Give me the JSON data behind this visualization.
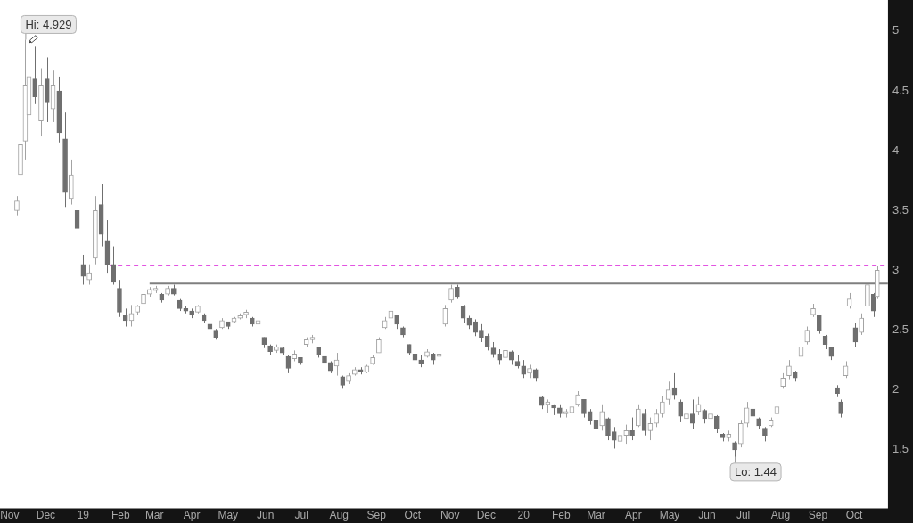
{
  "chart_data": {
    "type": "candlestick",
    "x": [
      "2018-11-07",
      "2018-11-10",
      "2018-11-14",
      "2018-11-17",
      "2018-11-22",
      "2018-11-27",
      "2018-12-02",
      "2018-12-07",
      "2018-12-12",
      "2018-12-17",
      "2018-12-22",
      "2018-12-27",
      "2019-01-01",
      "2019-01-06",
      "2019-01-11",
      "2019-01-16",
      "2019-01-21",
      "2019-01-26",
      "2019-01-31",
      "2019-02-05",
      "2019-02-10",
      "2019-02-15",
      "2019-02-20",
      "2019-02-25",
      "2019-03-02",
      "2019-03-07",
      "2019-03-12",
      "2019-03-17",
      "2019-03-22",
      "2019-03-27",
      "2019-04-01",
      "2019-04-06",
      "2019-04-11",
      "2019-04-16",
      "2019-04-21",
      "2019-04-26",
      "2019-05-01",
      "2019-05-06",
      "2019-05-11",
      "2019-05-16",
      "2019-05-21",
      "2019-05-26",
      "2019-05-31",
      "2019-06-05",
      "2019-06-10",
      "2019-06-15",
      "2019-06-20",
      "2019-06-25",
      "2019-06-30",
      "2019-07-05",
      "2019-07-10",
      "2019-07-15",
      "2019-07-20",
      "2019-07-25",
      "2019-07-30",
      "2019-08-04",
      "2019-08-09",
      "2019-08-14",
      "2019-08-19",
      "2019-08-24",
      "2019-08-29",
      "2019-09-03",
      "2019-09-08",
      "2019-09-13",
      "2019-09-18",
      "2019-09-23",
      "2019-09-28",
      "2019-10-03",
      "2019-10-08",
      "2019-10-13",
      "2019-10-18",
      "2019-10-23",
      "2019-10-28",
      "2019-11-02",
      "2019-11-07",
      "2019-11-12",
      "2019-11-17",
      "2019-11-22",
      "2019-11-27",
      "2019-12-02",
      "2019-12-07",
      "2019-12-12",
      "2019-12-17",
      "2019-12-22",
      "2019-12-27",
      "2020-01-01",
      "2020-01-06",
      "2020-01-11",
      "2020-01-16",
      "2020-01-21",
      "2020-01-26",
      "2020-01-31",
      "2020-02-05",
      "2020-02-10",
      "2020-02-15",
      "2020-02-20",
      "2020-02-25",
      "2020-03-01",
      "2020-03-06",
      "2020-03-11",
      "2020-03-16",
      "2020-03-21",
      "2020-03-26",
      "2020-03-31",
      "2020-04-05",
      "2020-04-10",
      "2020-04-15",
      "2020-04-20",
      "2020-04-25",
      "2020-04-30",
      "2020-05-05",
      "2020-05-10",
      "2020-05-15",
      "2020-05-20",
      "2020-05-25",
      "2020-05-30",
      "2020-06-04",
      "2020-06-09",
      "2020-06-14",
      "2020-06-19",
      "2020-06-24",
      "2020-06-29",
      "2020-07-04",
      "2020-07-09",
      "2020-07-14",
      "2020-07-19",
      "2020-07-24",
      "2020-07-29",
      "2020-08-03",
      "2020-08-08",
      "2020-08-13",
      "2020-08-18",
      "2020-08-23",
      "2020-08-28",
      "2020-09-02",
      "2020-09-07",
      "2020-09-12",
      "2020-09-17",
      "2020-09-20",
      "2020-09-24",
      "2020-09-27",
      "2020-10-02",
      "2020-10-07",
      "2020-10-12",
      "2020-10-17",
      "2020-10-20"
    ],
    "ohlc": [
      [
        3.5,
        3.62,
        3.46,
        3.58
      ],
      [
        3.8,
        4.1,
        3.78,
        4.05
      ],
      [
        4.08,
        4.929,
        3.92,
        4.55
      ],
      [
        4.3,
        4.8,
        3.9,
        4.62
      ],
      [
        4.6,
        4.87,
        4.39,
        4.45
      ],
      [
        4.25,
        4.69,
        4.12,
        4.55
      ],
      [
        4.6,
        4.78,
        4.24,
        4.4
      ],
      [
        4.35,
        4.67,
        4.24,
        4.55
      ],
      [
        4.5,
        4.62,
        4.07,
        4.15
      ],
      [
        4.1,
        4.32,
        3.53,
        3.65
      ],
      [
        3.6,
        3.92,
        3.55,
        3.8
      ],
      [
        3.5,
        3.57,
        3.28,
        3.35
      ],
      [
        3.05,
        3.13,
        2.88,
        2.95
      ],
      [
        2.92,
        3.05,
        2.88,
        2.98
      ],
      [
        3.1,
        3.62,
        3.05,
        3.5
      ],
      [
        3.55,
        3.72,
        3.2,
        3.3
      ],
      [
        3.25,
        3.42,
        2.98,
        3.05
      ],
      [
        3.05,
        3.2,
        2.88,
        2.9
      ],
      [
        2.85,
        2.92,
        2.61,
        2.65
      ],
      [
        2.62,
        2.68,
        2.53,
        2.58
      ],
      [
        2.58,
        2.71,
        2.53,
        2.64
      ],
      [
        2.65,
        2.71,
        2.63,
        2.7
      ],
      [
        2.72,
        2.82,
        2.71,
        2.8
      ],
      [
        2.8,
        2.86,
        2.78,
        2.84
      ],
      [
        2.83,
        2.87,
        2.81,
        2.85
      ],
      [
        2.8,
        2.81,
        2.73,
        2.75
      ],
      [
        2.8,
        2.87,
        2.79,
        2.85
      ],
      [
        2.85,
        2.88,
        2.79,
        2.8
      ],
      [
        2.75,
        2.76,
        2.66,
        2.68
      ],
      [
        2.68,
        2.7,
        2.64,
        2.66
      ],
      [
        2.66,
        2.68,
        2.6,
        2.63
      ],
      [
        2.65,
        2.71,
        2.64,
        2.7
      ],
      [
        2.63,
        2.64,
        2.56,
        2.58
      ],
      [
        2.55,
        2.56,
        2.49,
        2.51
      ],
      [
        2.5,
        2.51,
        2.42,
        2.44
      ],
      [
        2.52,
        2.6,
        2.51,
        2.58
      ],
      [
        2.57,
        2.57,
        2.51,
        2.53
      ],
      [
        2.57,
        2.61,
        2.56,
        2.6
      ],
      [
        2.6,
        2.64,
        2.59,
        2.62
      ],
      [
        2.63,
        2.67,
        2.6,
        2.65
      ],
      [
        2.6,
        2.61,
        2.53,
        2.55
      ],
      [
        2.55,
        2.61,
        2.53,
        2.58
      ],
      [
        2.44,
        2.44,
        2.35,
        2.38
      ],
      [
        2.37,
        2.38,
        2.29,
        2.32
      ],
      [
        2.33,
        2.38,
        2.31,
        2.36
      ],
      [
        2.35,
        2.36,
        2.29,
        2.31
      ],
      [
        2.28,
        2.29,
        2.14,
        2.18
      ],
      [
        2.26,
        2.33,
        2.24,
        2.3
      ],
      [
        2.27,
        2.27,
        2.21,
        2.23
      ],
      [
        2.38,
        2.44,
        2.36,
        2.42
      ],
      [
        2.42,
        2.46,
        2.39,
        2.44
      ],
      [
        2.36,
        2.36,
        2.27,
        2.29
      ],
      [
        2.28,
        2.29,
        2.21,
        2.23
      ],
      [
        2.23,
        2.24,
        2.14,
        2.16
      ],
      [
        2.2,
        2.31,
        2.12,
        2.25
      ],
      [
        2.11,
        2.12,
        2.01,
        2.04
      ],
      [
        2.07,
        2.14,
        2.05,
        2.12
      ],
      [
        2.13,
        2.19,
        2.12,
        2.17
      ],
      [
        2.17,
        2.19,
        2.13,
        2.15
      ],
      [
        2.15,
        2.21,
        2.14,
        2.2
      ],
      [
        2.22,
        2.29,
        2.21,
        2.27
      ],
      [
        2.31,
        2.44,
        2.31,
        2.42
      ],
      [
        2.52,
        2.61,
        2.51,
        2.58
      ],
      [
        2.6,
        2.68,
        2.59,
        2.66
      ],
      [
        2.62,
        2.62,
        2.51,
        2.55
      ],
      [
        2.52,
        2.53,
        2.44,
        2.46
      ],
      [
        2.38,
        2.38,
        2.29,
        2.31
      ],
      [
        2.3,
        2.34,
        2.21,
        2.25
      ],
      [
        2.25,
        2.29,
        2.19,
        2.22
      ],
      [
        2.28,
        2.34,
        2.27,
        2.32
      ],
      [
        2.3,
        2.31,
        2.21,
        2.25
      ],
      [
        2.28,
        2.31,
        2.27,
        2.3
      ],
      [
        2.55,
        2.71,
        2.53,
        2.68
      ],
      [
        2.75,
        2.88,
        2.73,
        2.85
      ],
      [
        2.86,
        2.88,
        2.76,
        2.78
      ],
      [
        2.7,
        2.71,
        2.56,
        2.6
      ],
      [
        2.6,
        2.62,
        2.51,
        2.54
      ],
      [
        2.57,
        2.59,
        2.45,
        2.48
      ],
      [
        2.5,
        2.55,
        2.4,
        2.44
      ],
      [
        2.45,
        2.47,
        2.33,
        2.36
      ],
      [
        2.35,
        2.4,
        2.27,
        2.3
      ],
      [
        2.3,
        2.34,
        2.21,
        2.25
      ],
      [
        2.27,
        2.36,
        2.25,
        2.33
      ],
      [
        2.32,
        2.33,
        2.21,
        2.25
      ],
      [
        2.24,
        2.29,
        2.18,
        2.2
      ],
      [
        2.2,
        2.25,
        2.1,
        2.13
      ],
      [
        2.14,
        2.21,
        2.1,
        2.18
      ],
      [
        2.17,
        2.18,
        2.07,
        2.1
      ],
      [
        1.94,
        1.95,
        1.84,
        1.87
      ],
      [
        1.88,
        1.92,
        1.81,
        1.9
      ],
      [
        1.87,
        1.88,
        1.79,
        1.85
      ],
      [
        1.85,
        1.88,
        1.77,
        1.8
      ],
      [
        1.8,
        1.84,
        1.77,
        1.82
      ],
      [
        1.81,
        1.88,
        1.79,
        1.86
      ],
      [
        1.88,
        1.99,
        1.86,
        1.96
      ],
      [
        1.92,
        1.92,
        1.77,
        1.8
      ],
      [
        1.82,
        1.84,
        1.71,
        1.74
      ],
      [
        1.75,
        1.81,
        1.62,
        1.68
      ],
      [
        1.7,
        1.88,
        1.66,
        1.82
      ],
      [
        1.76,
        1.77,
        1.58,
        1.62
      ],
      [
        1.65,
        1.69,
        1.51,
        1.58
      ],
      [
        1.57,
        1.66,
        1.51,
        1.62
      ],
      [
        1.62,
        1.71,
        1.55,
        1.66
      ],
      [
        1.66,
        1.77,
        1.58,
        1.62
      ],
      [
        1.7,
        1.88,
        1.69,
        1.84
      ],
      [
        1.8,
        1.84,
        1.62,
        1.66
      ],
      [
        1.66,
        1.77,
        1.58,
        1.72
      ],
      [
        1.72,
        1.84,
        1.69,
        1.8
      ],
      [
        1.8,
        1.95,
        1.77,
        1.9
      ],
      [
        1.92,
        2.07,
        1.88,
        2.0
      ],
      [
        2.02,
        2.14,
        1.92,
        1.96
      ],
      [
        1.9,
        1.92,
        1.73,
        1.78
      ],
      [
        1.76,
        1.88,
        1.69,
        1.8
      ],
      [
        1.8,
        1.92,
        1.67,
        1.72
      ],
      [
        1.82,
        1.94,
        1.79,
        1.88
      ],
      [
        1.83,
        1.84,
        1.72,
        1.76
      ],
      [
        1.76,
        1.84,
        1.69,
        1.8
      ],
      [
        1.78,
        1.79,
        1.64,
        1.68
      ],
      [
        1.63,
        1.64,
        1.57,
        1.6
      ],
      [
        1.6,
        1.66,
        1.57,
        1.63
      ],
      [
        1.56,
        1.57,
        1.44,
        1.5
      ],
      [
        1.55,
        1.75,
        1.52,
        1.72
      ],
      [
        1.72,
        1.9,
        1.69,
        1.85
      ],
      [
        1.84,
        1.88,
        1.73,
        1.78
      ],
      [
        1.76,
        1.77,
        1.67,
        1.7
      ],
      [
        1.68,
        1.69,
        1.57,
        1.62
      ],
      [
        1.7,
        1.77,
        1.69,
        1.75
      ],
      [
        1.8,
        1.9,
        1.79,
        1.86
      ],
      [
        2.03,
        2.14,
        2.01,
        2.1
      ],
      [
        2.12,
        2.25,
        2.09,
        2.2
      ],
      [
        2.15,
        2.16,
        2.07,
        2.1
      ],
      [
        2.28,
        2.4,
        2.27,
        2.36
      ],
      [
        2.4,
        2.53,
        2.38,
        2.5
      ],
      [
        2.63,
        2.72,
        2.61,
        2.68
      ],
      [
        2.62,
        2.62,
        2.47,
        2.5
      ],
      [
        2.45,
        2.46,
        2.34,
        2.38
      ],
      [
        2.36,
        2.36,
        2.25,
        2.28
      ],
      [
        2.02,
        2.04,
        1.94,
        1.97
      ],
      [
        1.9,
        1.92,
        1.77,
        1.8
      ],
      [
        2.12,
        2.24,
        2.1,
        2.2
      ],
      [
        2.7,
        2.81,
        2.68,
        2.76
      ],
      [
        2.52,
        2.56,
        2.36,
        2.4
      ],
      [
        2.48,
        2.64,
        2.46,
        2.6
      ],
      [
        2.7,
        2.93,
        2.66,
        2.88
      ],
      [
        2.8,
        2.81,
        2.61,
        2.66
      ],
      [
        2.78,
        3.04,
        2.76,
        3.0
      ]
    ],
    "colors": [
      "#a3a3a3",
      "#a3a3a3",
      "#a3a3a3",
      "#a3a3a3",
      "#6f6f6f",
      "#a3a3a3",
      "#6f6f6f",
      "#a3a3a3",
      "#6f6f6f",
      "#6f6f6f",
      "#a3a3a3",
      "#6f6f6f",
      "#6f6f6f",
      "#a3a3a3",
      "#a3a3a3",
      "#6f6f6f",
      "#6f6f6f",
      "#6f6f6f",
      "#6f6f6f",
      "#6f6f6f",
      "#a3a3a3",
      "#a3a3a3",
      "#a3a3a3",
      "#a3a3a3",
      "#a3a3a3",
      "#6f6f6f",
      "#a3a3a3",
      "#6f6f6f",
      "#6f6f6f",
      "#6f6f6f",
      "#6f6f6f",
      "#a3a3a3",
      "#6f6f6f",
      "#6f6f6f",
      "#6f6f6f",
      "#a3a3a3",
      "#6f6f6f",
      "#a3a3a3",
      "#a3a3a3",
      "#a3a3a3",
      "#6f6f6f",
      "#a3a3a3",
      "#6f6f6f",
      "#6f6f6f",
      "#a3a3a3",
      "#6f6f6f",
      "#6f6f6f",
      "#a3a3a3",
      "#6f6f6f",
      "#a3a3a3",
      "#a3a3a3",
      "#6f6f6f",
      "#6f6f6f",
      "#6f6f6f",
      "#a3a3a3",
      "#6f6f6f",
      "#a3a3a3",
      "#a3a3a3",
      "#6f6f6f",
      "#a3a3a3",
      "#a3a3a3",
      "#a3a3a3",
      "#a3a3a3",
      "#a3a3a3",
      "#6f6f6f",
      "#6f6f6f",
      "#6f6f6f",
      "#6f6f6f",
      "#6f6f6f",
      "#a3a3a3",
      "#6f6f6f",
      "#a3a3a3",
      "#a3a3a3",
      "#a3a3a3",
      "#6f6f6f",
      "#6f6f6f",
      "#6f6f6f",
      "#6f6f6f",
      "#6f6f6f",
      "#6f6f6f",
      "#6f6f6f",
      "#6f6f6f",
      "#a3a3a3",
      "#6f6f6f",
      "#6f6f6f",
      "#6f6f6f",
      "#a3a3a3",
      "#6f6f6f",
      "#6f6f6f",
      "#a3a3a3",
      "#6f6f6f",
      "#6f6f6f",
      "#a3a3a3",
      "#a3a3a3",
      "#a3a3a3",
      "#6f6f6f",
      "#6f6f6f",
      "#6f6f6f",
      "#a3a3a3",
      "#6f6f6f",
      "#6f6f6f",
      "#a3a3a3",
      "#a3a3a3",
      "#6f6f6f",
      "#a3a3a3",
      "#6f6f6f",
      "#a3a3a3",
      "#a3a3a3",
      "#a3a3a3",
      "#a3a3a3",
      "#6f6f6f",
      "#6f6f6f",
      "#a3a3a3",
      "#6f6f6f",
      "#a3a3a3",
      "#6f6f6f",
      "#a3a3a3",
      "#6f6f6f",
      "#6f6f6f",
      "#a3a3a3",
      "#6f6f6f",
      "#a3a3a3",
      "#a3a3a3",
      "#6f6f6f",
      "#6f6f6f",
      "#6f6f6f",
      "#a3a3a3",
      "#a3a3a3",
      "#a3a3a3",
      "#a3a3a3",
      "#6f6f6f",
      "#a3a3a3",
      "#a3a3a3",
      "#a3a3a3",
      "#6f6f6f",
      "#6f6f6f",
      "#6f6f6f",
      "#6f6f6f",
      "#6f6f6f",
      "#a3a3a3",
      "#a3a3a3",
      "#6f6f6f",
      "#a3a3a3",
      "#a3a3a3",
      "#6f6f6f",
      "#a3a3a3"
    ],
    "series": [
      {
        "type": "line",
        "x": [
          "2019-02-25",
          "2020-10-29"
        ],
        "values": [
          2.89,
          2.89
        ],
        "color": "#7f7f7f"
      },
      {
        "type": "line",
        "x": [
          "2019-01-23",
          "2020-10-29"
        ],
        "values": [
          3.04,
          3.04
        ],
        "color": "#e254e2",
        "line_style": "dashed"
      }
    ],
    "xlim": [
      "2018-10-24",
      "2020-10-29"
    ],
    "xticks": [
      {
        "value": "2018-11-01",
        "label": "Nov"
      },
      {
        "value": "2018-12-01",
        "label": "Dec"
      },
      {
        "value": "2019-01-01",
        "label": "19"
      },
      {
        "value": "2019-02-01",
        "label": "Feb"
      },
      {
        "value": "2019-03-01",
        "label": "Mar"
      },
      {
        "value": "2019-04-01",
        "label": "Apr"
      },
      {
        "value": "2019-05-01",
        "label": "May"
      },
      {
        "value": "2019-06-01",
        "label": "Jun"
      },
      {
        "value": "2019-07-01",
        "label": "Jul"
      },
      {
        "value": "2019-08-01",
        "label": "Aug"
      },
      {
        "value": "2019-09-01",
        "label": "Sep"
      },
      {
        "value": "2019-10-01",
        "label": "Oct"
      },
      {
        "value": "2019-11-01",
        "label": "Nov"
      },
      {
        "value": "2019-12-01",
        "label": "Dec"
      },
      {
        "value": "2020-01-01",
        "label": "20"
      },
      {
        "value": "2020-02-01",
        "label": "Feb"
      },
      {
        "value": "2020-03-01",
        "label": "Mar"
      },
      {
        "value": "2020-04-01",
        "label": "Apr"
      },
      {
        "value": "2020-05-01",
        "label": "May"
      },
      {
        "value": "2020-06-01",
        "label": "Jun"
      },
      {
        "value": "2020-07-01",
        "label": "Jul"
      },
      {
        "value": "2020-08-01",
        "label": "Aug"
      },
      {
        "value": "2020-09-01",
        "label": "Sep"
      },
      {
        "value": "2020-10-01",
        "label": "Oct"
      }
    ],
    "ylim": [
      1.01,
      5.26
    ],
    "yticks": [
      1.5,
      2,
      2.5,
      3,
      3.5,
      4,
      4.5,
      5
    ],
    "annotations": [
      {
        "text": "Hi: 4.929",
        "x": "2018-11-14",
        "y": 4.929
      },
      {
        "text": "Lo: 1.44",
        "x": "2020-06-24",
        "y": 1.44
      }
    ]
  }
}
